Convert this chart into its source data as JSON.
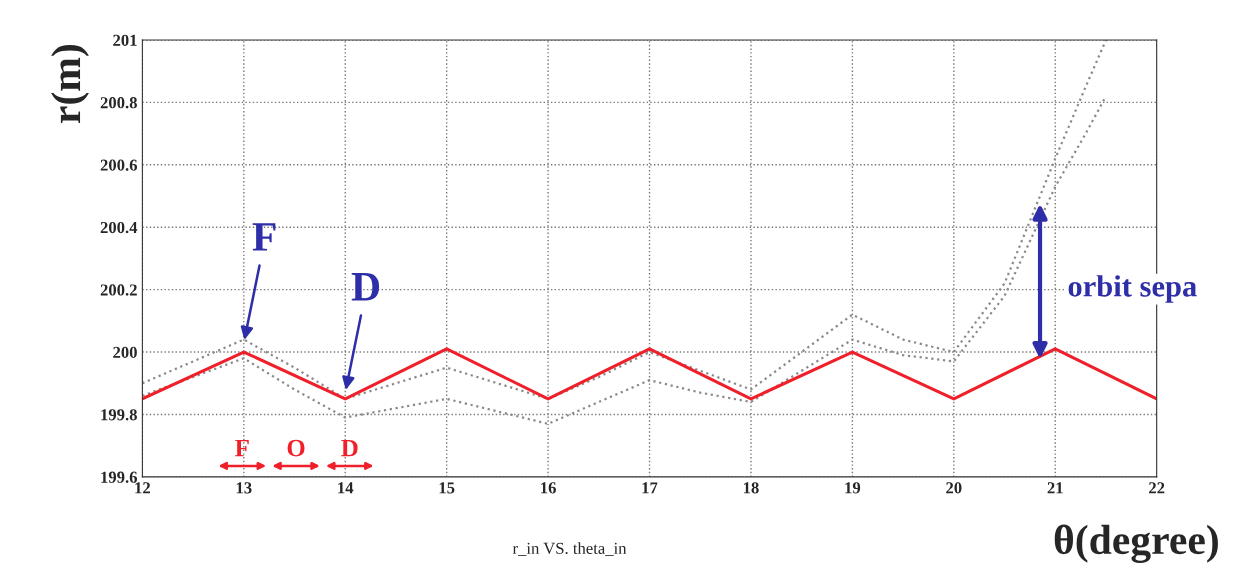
{
  "chart_data": {
    "type": "line",
    "title": "r_in VS. theta_in",
    "xlabel": "θ(degree)",
    "ylabel": "r(m)",
    "xlim": [
      12,
      22
    ],
    "xticks": [
      12,
      13,
      14,
      15,
      16,
      17,
      18,
      19,
      20,
      21,
      22
    ],
    "ylim": [
      199.6,
      201
    ],
    "yticks": [
      199.6,
      199.8,
      200,
      200.2,
      200.4,
      200.6,
      200.8,
      201
    ],
    "grid": true,
    "marker": "none",
    "series": [
      {
        "line_style": "dotted",
        "color": "#8a8a8a",
        "x": [
          12,
          12.5,
          13,
          13.5,
          14,
          14.5,
          15,
          15.5,
          16,
          16.5,
          17,
          17.5,
          18,
          18.5,
          19,
          19.5,
          20,
          20.5,
          21,
          21.3,
          21.5
        ],
        "values": [
          199.9,
          199.97,
          200.04,
          199.95,
          199.85,
          199.9,
          199.95,
          199.9,
          199.85,
          199.92,
          200.0,
          199.94,
          199.88,
          200.0,
          200.12,
          200.04,
          200.0,
          200.22,
          200.62,
          200.85,
          201.0
        ]
      },
      {
        "line_style": "dotted",
        "color": "#8a8a8a",
        "x": [
          12,
          12.5,
          13,
          13.5,
          14,
          14.5,
          15,
          15.5,
          16,
          16.5,
          17,
          17.5,
          18,
          18.5,
          19,
          19.5,
          20,
          20.5,
          21,
          21.3,
          21.5
        ],
        "values": [
          199.86,
          199.92,
          199.98,
          199.88,
          199.79,
          199.82,
          199.85,
          199.81,
          199.77,
          199.84,
          199.91,
          199.87,
          199.84,
          199.94,
          200.04,
          199.99,
          199.97,
          200.18,
          200.53,
          200.7,
          200.82
        ]
      },
      {
        "line_style": "solid",
        "color": "#f0202a",
        "x": [
          12,
          13,
          14,
          15,
          16,
          17,
          18,
          19,
          20,
          21,
          22
        ],
        "values": [
          199.85,
          200.0,
          199.85,
          200.01,
          199.85,
          200.01,
          199.85,
          200.0,
          199.85,
          200.01,
          199.85
        ]
      }
    ],
    "annotations": [
      {
        "text": "F",
        "x": 13,
        "y": 200.03
      },
      {
        "text": "D",
        "x": 14,
        "y": 199.87
      },
      "orbit sepa",
      "F",
      "O",
      "D"
    ]
  }
}
